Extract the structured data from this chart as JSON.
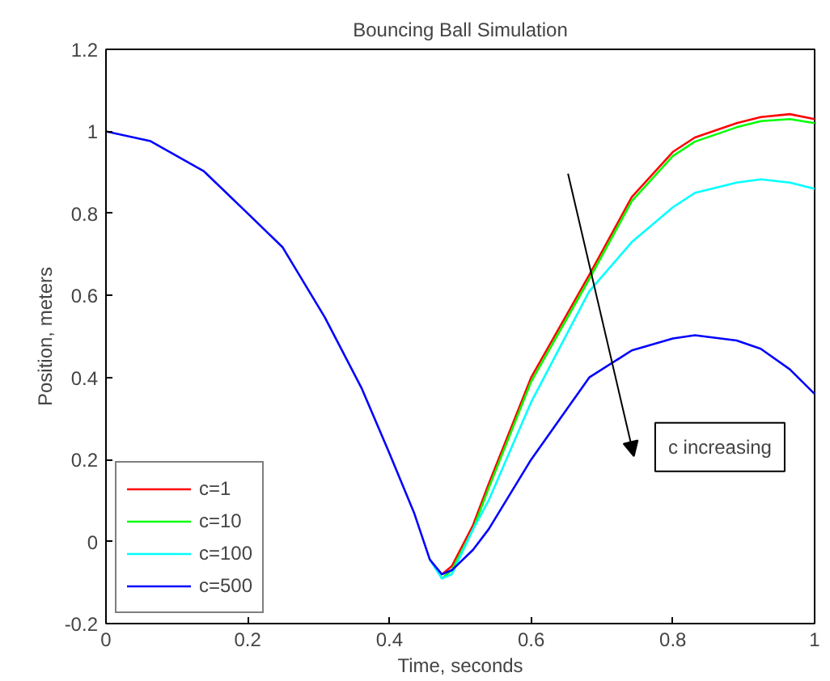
{
  "chart_data": {
    "type": "line",
    "title": "Bouncing Ball Simulation",
    "xlabel": "Time, seconds",
    "ylabel": "Position, meters",
    "x": [
      0,
      0.063,
      0.138,
      0.2,
      0.249,
      0.309,
      0.361,
      0.4,
      0.435,
      0.457,
      0.474,
      0.488,
      0.518,
      0.54,
      0.6,
      0.682,
      0.742,
      0.8,
      0.831,
      0.89,
      0.924,
      0.965,
      1.0
    ],
    "series": [
      {
        "name": "c=1",
        "color": "#ff0000",
        "values": [
          null,
          null,
          null,
          null,
          null,
          null,
          null,
          null,
          null,
          null,
          -0.08,
          -0.06,
          0.04,
          0.14,
          0.4,
          0.65,
          0.84,
          0.95,
          0.985,
          1.02,
          1.035,
          1.042,
          1.03
        ]
      },
      {
        "name": "c=10",
        "color": "#00ff00",
        "values": [
          null,
          null,
          null,
          null,
          null,
          null,
          null,
          null,
          null,
          null,
          -0.09,
          -0.07,
          0.03,
          0.13,
          0.39,
          0.64,
          0.83,
          0.94,
          0.975,
          1.01,
          1.025,
          1.03,
          1.02
        ]
      },
      {
        "name": "c=100",
        "color": "#00ffff",
        "values": [
          null,
          null,
          null,
          null,
          null,
          null,
          null,
          null,
          null,
          -0.044,
          -0.09,
          -0.08,
          0.03,
          0.1,
          0.34,
          0.61,
          0.73,
          0.815,
          0.85,
          0.875,
          0.883,
          0.875,
          0.86
        ]
      },
      {
        "name": "c=500",
        "color": "#0000ff",
        "values": [
          1,
          0.976,
          0.903,
          0.8,
          0.718,
          0.546,
          0.373,
          0.215,
          0.069,
          -0.044,
          -0.08,
          -0.07,
          -0.02,
          0.03,
          0.2,
          0.4,
          0.466,
          0.495,
          0.503,
          0.49,
          0.47,
          0.42,
          0.36
        ]
      }
    ],
    "annotations": [
      "c increasing"
    ],
    "xlim": [
      0,
      1
    ],
    "ylim": [
      -0.2,
      1.2
    ],
    "xticks": [
      0,
      0.2,
      0.4,
      0.6,
      0.8,
      1
    ],
    "yticks": [
      -0.2,
      0,
      0.2,
      0.4,
      0.6,
      0.8,
      1,
      1.2
    ],
    "grid": false,
    "legend": "bottom left",
    "line_style": "solid",
    "marker": "none"
  }
}
